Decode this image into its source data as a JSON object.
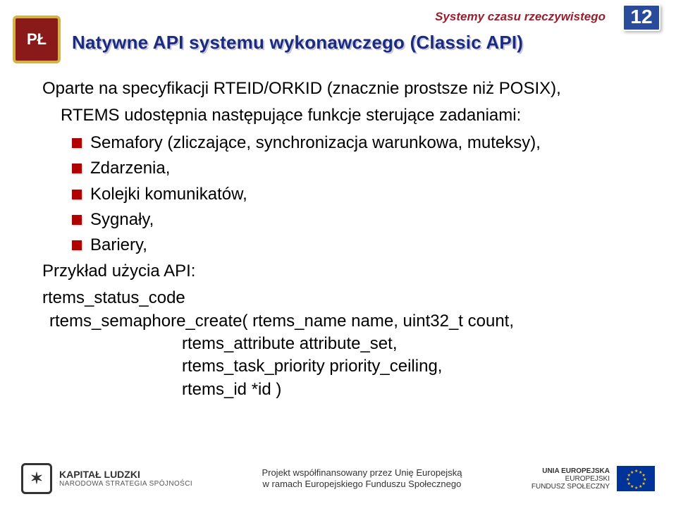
{
  "header": {
    "course_label": "Systemy czasu rzeczywistego",
    "course_color": "#9a1f2e",
    "course_fontsize": 17,
    "page_number": "12",
    "pagenum_bg": "#2a4b9b",
    "pagenum_fontsize": 28,
    "title": "Natywne API systemu wykonawczego (Classic API)",
    "title_color": "#1b2b82",
    "title_shadow": "#b8b8c8",
    "title_fontsize": 26
  },
  "body": {
    "fontsize": 24,
    "text_color": "#000000",
    "bullet_color": "#b00000",
    "intro_line1": "Oparte na specyfikacji RTEID/ORKID (znacznie prostsze niż POSIX),",
    "intro_line2": "RTEMS udostępnia następujące funkcje sterujące zadaniami:",
    "bullets": [
      "Semafory (zliczające, synchronizacja warunkowa, muteksy),",
      "Zdarzenia,",
      "Kolejki komunikatów,",
      "Sygnały,",
      "Bariery,"
    ],
    "example_label": "Przykład użycia API:",
    "api_line1": "rtems_status_code",
    "api_line2": "rtems_semaphore_create( rtems_name name, uint32_t count,",
    "api_params": [
      "rtems_attribute attribute_set,",
      "rtems_task_priority priority_ceiling,",
      "rtems_id *id )"
    ]
  },
  "footer": {
    "kl_title": "KAPITAŁ LUDZKI",
    "kl_sub": "NARODOWA STRATEGIA SPÓJNOŚCI",
    "center_line1": "Projekt współfinansowany przez Unię Europejską",
    "center_line2": "w ramach Europejskiego Funduszu Społecznego",
    "eu_line1": "UNIA EUROPEJSKA",
    "eu_line2": "EUROPEJSKI",
    "eu_line3": "FUNDUSZ SPOŁECZNY",
    "flag_bg": "#003399",
    "star_color": "#ffcc00"
  }
}
